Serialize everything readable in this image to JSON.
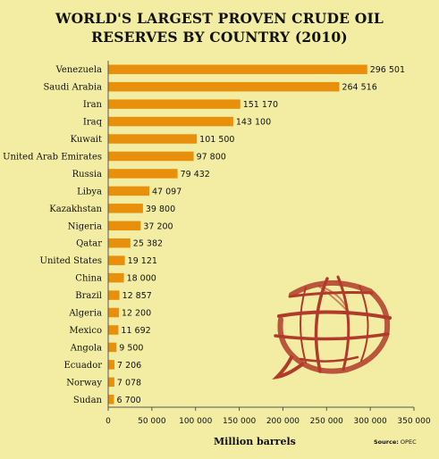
{
  "title_line1": "WORLD'S LARGEST PROVEN CRUDE OIL",
  "title_line2": "RESERVES BY COUNTRY (2010)",
  "source_label": "Source:",
  "source_value": "OPEC",
  "bar_color": "#e8900c",
  "logo_color": "#b23a2a",
  "chart_data": {
    "type": "bar",
    "orientation": "horizontal",
    "title": "WORLD'S LARGEST PROVEN CRUDE OIL RESERVES BY COUNTRY (2010)",
    "xlabel": "Million barrels",
    "ylabel": "",
    "xlim": [
      0,
      350000
    ],
    "ticks": [
      0,
      50000,
      100000,
      150000,
      200000,
      250000,
      300000,
      350000
    ],
    "tick_labels": [
      "0",
      "50 000",
      "100 000",
      "150 000",
      "200 000",
      "250 000",
      "300 000",
      "350 000"
    ],
    "categories": [
      "Venezuela",
      "Saudi Arabia",
      "Iran",
      "Iraq",
      "Kuwait",
      "United Arab Emirates",
      "Russia",
      "Libya",
      "Kazakhstan",
      "Nigeria",
      "Qatar",
      "United States",
      "China",
      "Brazil",
      "Algeria",
      "Mexico",
      "Angola",
      "Ecuador",
      "Norway",
      "Sudan"
    ],
    "values": [
      296501,
      264516,
      151170,
      143100,
      101500,
      97800,
      79432,
      47097,
      39800,
      37200,
      25382,
      19121,
      18000,
      12857,
      12200,
      11692,
      9500,
      7206,
      7078,
      6700
    ],
    "value_labels": [
      "296 501",
      "264 516",
      "151 170",
      "143 100",
      "101 500",
      "97 800",
      "79 432",
      "47 097",
      "39 800",
      "37 200",
      "25 382",
      "19 121",
      "18 000",
      "12 857",
      "12 200",
      "11 692",
      "9 500",
      "7 206",
      "7 078",
      "6 700"
    ],
    "grid": false,
    "legend": "none"
  }
}
